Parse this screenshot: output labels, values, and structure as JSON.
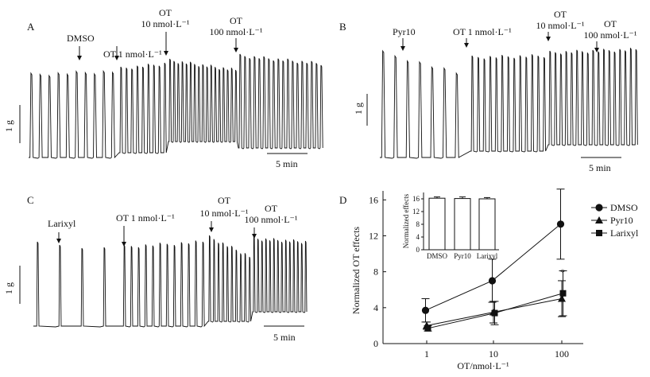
{
  "figure": {
    "panels": [
      {
        "letter": "A",
        "annotations": [
          {
            "text": "DMSO"
          },
          {
            "text": "OT 1 nmol·L⁻¹"
          },
          {
            "text": "OT",
            "text2": "10 nmol·L⁻¹"
          },
          {
            "text": "OT",
            "text2": "100 nmol·L⁻¹"
          }
        ],
        "scale_y": "1 g",
        "scale_x": "5 min"
      },
      {
        "letter": "B",
        "annotations": [
          {
            "text": "Pyr10"
          },
          {
            "text": "OT 1 nmol·L⁻¹"
          },
          {
            "text": "OT",
            "text2": "10 nmol·L⁻¹"
          },
          {
            "text": "OT",
            "text2": "100 nmol·L⁻¹"
          }
        ],
        "scale_y": "1 g",
        "scale_x": "5 min"
      },
      {
        "letter": "C",
        "annotations": [
          {
            "text": "Larixyl"
          },
          {
            "text": "OT 1 nmol·L⁻¹"
          },
          {
            "text": "OT",
            "text2": "10 nmol·L⁻¹"
          },
          {
            "text": "OT",
            "text2": "100 nmol·L⁻¹"
          }
        ],
        "scale_y": "1 g",
        "scale_x": "5 min"
      }
    ]
  },
  "chart_data": [
    {
      "type": "line",
      "panel": "D",
      "title": "",
      "xlabel": "OT/nmol·L⁻¹",
      "ylabel": "Normalized OT effects",
      "x": [
        "1",
        "10",
        "100"
      ],
      "ylim": [
        0,
        17
      ],
      "yticks": [
        "0",
        "4",
        "8",
        "12",
        "16"
      ],
      "series": [
        {
          "name": "DMSO",
          "marker": "circle",
          "values": [
            3.7,
            7.0,
            13.3
          ],
          "errors": [
            1.3,
            2.4,
            3.9
          ]
        },
        {
          "name": "Pyr10",
          "marker": "triangle",
          "values": [
            2.0,
            3.5,
            5.0
          ],
          "errors": [
            0.4,
            1.2,
            2.0
          ]
        },
        {
          "name": "Larixyl",
          "marker": "square",
          "values": [
            1.7,
            3.4,
            5.6
          ],
          "errors": [
            0.3,
            1.3,
            2.5
          ]
        }
      ],
      "annotations": [
        "*"
      ]
    },
    {
      "type": "bar",
      "panel": "D-inset",
      "categories": [
        "DMSO",
        "Pyr10",
        "Larixyl"
      ],
      "values": [
        16.2,
        16.1,
        16.0
      ],
      "errors": [
        0.4,
        0.5,
        0.4
      ],
      "ylabel": "Normalized effects",
      "ylim": [
        0,
        18
      ],
      "yticks": [
        "0",
        "4",
        "8",
        "12",
        "16"
      ]
    }
  ]
}
